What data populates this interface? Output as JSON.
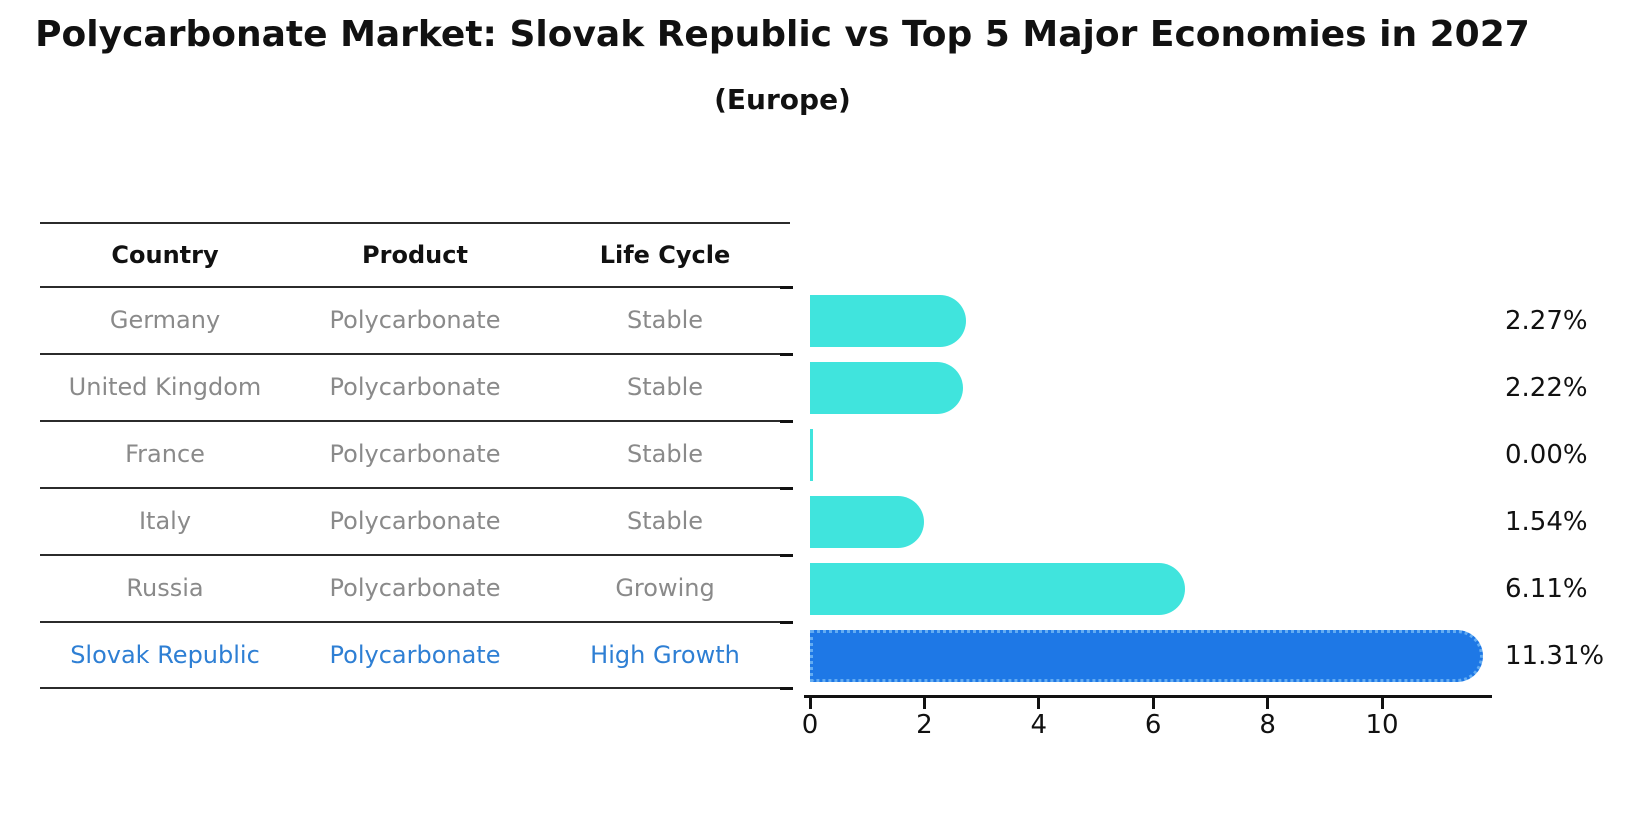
{
  "title": "Polycarbonate Market: Slovak Republic vs Top 5 Major Economies in 2027",
  "subtitle": "(Europe)",
  "table": {
    "headers": [
      "Country",
      "Product",
      "Life Cycle"
    ],
    "rows": [
      {
        "country": "Germany",
        "product": "Polycarbonate",
        "life_cycle": "Stable",
        "highlight": false
      },
      {
        "country": "United Kingdom",
        "product": "Polycarbonate",
        "life_cycle": "Stable",
        "highlight": false
      },
      {
        "country": "France",
        "product": "Polycarbonate",
        "life_cycle": "Stable",
        "highlight": false
      },
      {
        "country": "Italy",
        "product": "Polycarbonate",
        "life_cycle": "Stable",
        "highlight": false
      },
      {
        "country": "Russia",
        "product": "Polycarbonate",
        "life_cycle": "Growing",
        "highlight": false
      },
      {
        "country": "Slovak Republic",
        "product": "Polycarbonate",
        "life_cycle": "High Growth",
        "highlight": true
      }
    ]
  },
  "chart_data": {
    "type": "bar",
    "orientation": "horizontal",
    "title": "Polycarbonate Market: Slovak Republic vs Top 5 Major Economies in 2027 (Europe)",
    "categories": [
      "Germany",
      "United Kingdom",
      "France",
      "Italy",
      "Russia",
      "Slovak Republic"
    ],
    "values": [
      2.27,
      2.22,
      0.0,
      1.54,
      6.11,
      11.31
    ],
    "value_labels": [
      "2.27%",
      "2.22%",
      "0.00%",
      "1.54%",
      "6.11%",
      "11.31%"
    ],
    "unit": "percent",
    "x_ticks": [
      0,
      2,
      4,
      6,
      8,
      10
    ],
    "xlim": [
      0,
      11.9
    ],
    "grid": false,
    "legend": "none",
    "highlight_index": 5,
    "colors": {
      "bar": "#40e4dd",
      "highlight_bar": "#1e78e6",
      "highlight_edge": "#63acf2",
      "highlight_text": "#2e7fd4",
      "row_text": "#8a8a8a",
      "axis": "#111111"
    }
  }
}
